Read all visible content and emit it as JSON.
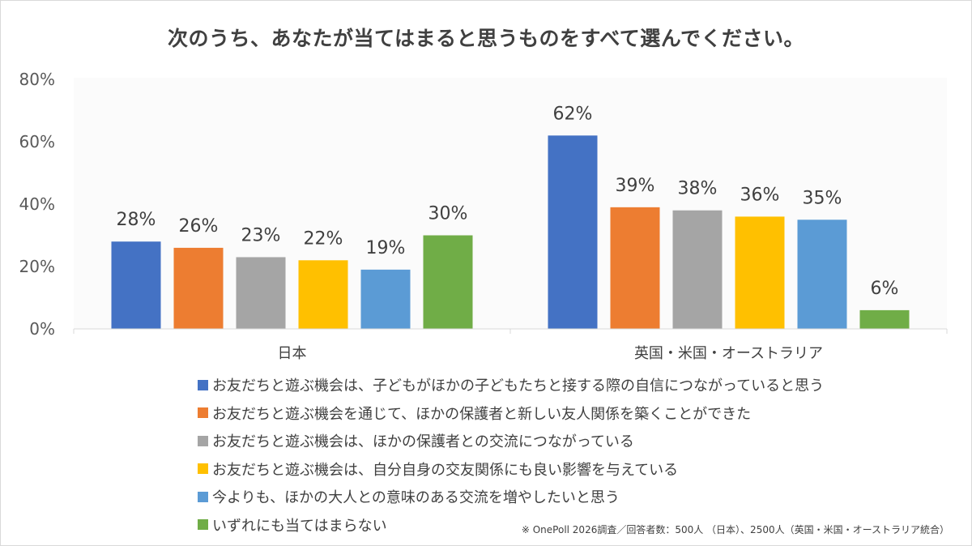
{
  "chart_data": {
    "type": "bar",
    "title": "次のうち、あなたが当てはまると思うものをすべて選んでください。",
    "categories": [
      "日本",
      "英国・米国・オーストラリア"
    ],
    "series": [
      {
        "name": "お友だちと遊ぶ機会は、子どもがほかの子どもたちと接する際の自信につながっていると思う",
        "color": "#4472c4",
        "values": [
          28,
          62
        ],
        "labels": [
          "28%",
          "62%"
        ]
      },
      {
        "name": "お友だちと遊ぶ機会を通じて、ほかの保護者と新しい友人関係を築くことができた",
        "color": "#ed7d31",
        "values": [
          26,
          39
        ],
        "labels": [
          "26%",
          "39%"
        ]
      },
      {
        "name": "お友だちと遊ぶ機会は、ほかの保護者との交流につながっている",
        "color": "#a5a5a5",
        "values": [
          23,
          38
        ],
        "labels": [
          "23%",
          "38%"
        ]
      },
      {
        "name": "お友だちと遊ぶ機会は、自分自身の交友関係にも良い影響を与えている",
        "color": "#ffc000",
        "values": [
          22,
          36
        ],
        "labels": [
          "22%",
          "36%"
        ]
      },
      {
        "name": "今よりも、ほかの大人との意味のある交流を増やしたいと思う",
        "color": "#5b9bd5",
        "values": [
          19,
          35
        ],
        "labels": [
          "19%",
          "35%"
        ]
      },
      {
        "name": "いずれにも当てはまらない",
        "color": "#70ad47",
        "values": [
          30,
          6
        ],
        "labels": [
          "30%",
          "6%"
        ]
      }
    ],
    "ylim": [
      0,
      80
    ],
    "yticks": [
      0,
      20,
      40,
      60,
      80
    ],
    "ytick_labels": [
      "0%",
      "20%",
      "40%",
      "60%",
      "80%"
    ],
    "grid": false,
    "legend_position": "bottom"
  },
  "footnote": "※ OnePoll 2026調査／回答者数：500人 （日本）、2500人（英国・米国・オーストラリア統合）"
}
